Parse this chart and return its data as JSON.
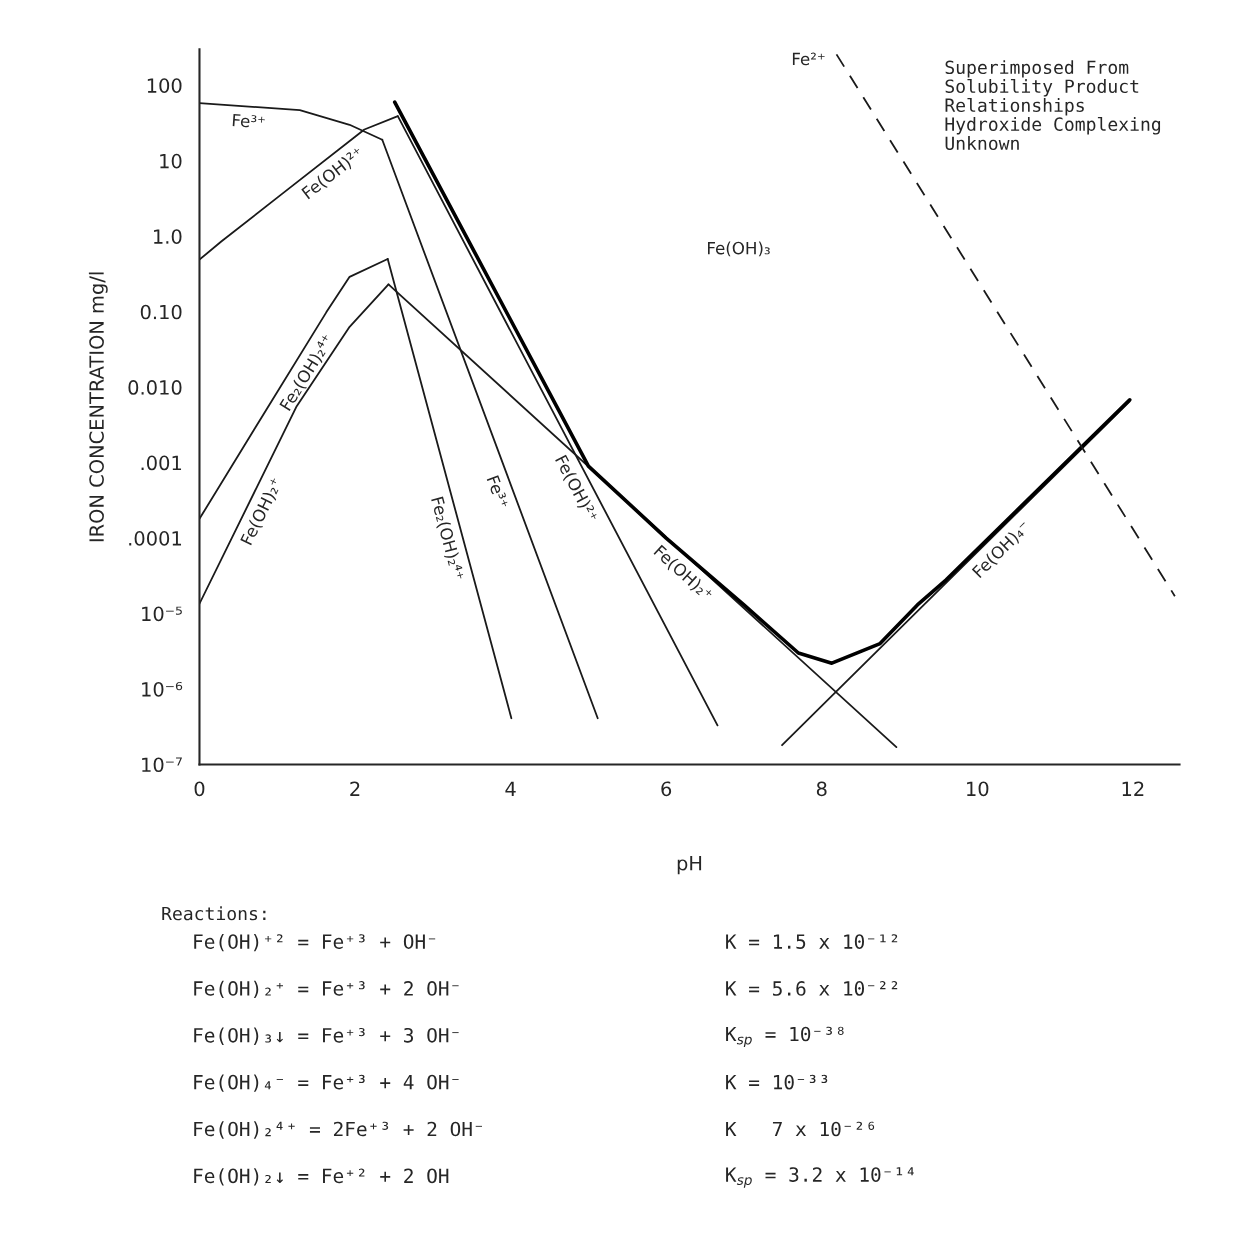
{
  "chart_data": {
    "type": "line",
    "xlabel": "pH",
    "ylabel": "IRON CONCENTRATION mg/l",
    "log": "y",
    "xlim": [
      0,
      12.6
    ],
    "xticks": [
      0,
      2,
      4,
      6,
      8,
      10,
      12
    ],
    "ylim": [
      1e-07,
      300
    ],
    "yticks": [
      {
        "value": 100,
        "label": "100"
      },
      {
        "value": 10,
        "label": "10"
      },
      {
        "value": 1,
        "label": "1.0"
      },
      {
        "value": 0.1,
        "label": "0.10"
      },
      {
        "value": 0.01,
        "label": "0.010"
      },
      {
        "value": 0.001,
        "label": ".001"
      },
      {
        "value": 0.0001,
        "label": ".0001"
      },
      {
        "value": 1e-05,
        "label": "10⁻⁵"
      },
      {
        "value": 1e-06,
        "label": "10⁻⁶"
      },
      {
        "value": 1e-07,
        "label": "10⁻⁷"
      }
    ],
    "grid": false,
    "legend": false,
    "marker": "none",
    "series": [
      {
        "name": "Fe³⁺",
        "color": "#1a1a1a",
        "x": [
          0,
          1.29,
          1.93,
          2.35
        ],
        "values": [
          58,
          47,
          30,
          19
        ]
      },
      {
        "name": "Fe³⁺",
        "color": "#1a1a1a",
        "x": [
          2.35,
          5.12
        ],
        "values": [
          19,
          4.1e-07
        ]
      },
      {
        "name": "Fe(OH)²⁺",
        "color": "#1a1a1a",
        "x": [
          0,
          0.28,
          1.07,
          2.12,
          2.55
        ],
        "values": [
          0.49,
          0.85,
          3.7,
          26,
          39
        ]
      },
      {
        "name": "Fe(OH)²⁺",
        "color": "#1a1a1a",
        "x": [
          2.55,
          6.66
        ],
        "values": [
          39,
          3.3e-07
        ]
      },
      {
        "name": "Fe₂(OH)₂⁴⁺",
        "color": "#1a1a1a",
        "x": [
          0,
          0.8,
          1.63,
          1.93,
          2.42
        ],
        "values": [
          0.00018,
          0.004,
          0.098,
          0.29,
          0.5
        ]
      },
      {
        "name": "Fe₂(OH)₂⁴⁺",
        "color": "#1a1a1a",
        "x": [
          2.42,
          4.01
        ],
        "values": [
          0.5,
          4.1e-07
        ]
      },
      {
        "name": "Fe(OH)₂⁺",
        "color": "#1a1a1a",
        "x": [
          0,
          1.25,
          1.93,
          2.43
        ],
        "values": [
          1.35e-05,
          0.0056,
          0.063,
          0.23
        ]
      },
      {
        "name": "Fe(OH)₂⁺",
        "color": "#1a1a1a",
        "x": [
          2.43,
          8.96
        ],
        "values": [
          0.23,
          1.7e-07
        ]
      },
      {
        "name": "Fe(OH)₄⁻",
        "color": "#1a1a1a",
        "x": [
          7.49,
          11.96
        ],
        "values": [
          1.8e-07,
          0.0065
        ]
      },
      {
        "color": "#000000",
        "x": [
          2.51,
          4.59,
          5.0,
          6.0,
          7.0,
          7.7,
          8.13,
          8.75,
          9.23,
          9.6,
          11.96
        ],
        "values": [
          60,
          0.0056,
          0.0009,
          0.0001,
          1.3e-05,
          3e-06,
          2.2e-06,
          4e-06,
          1.3e-05,
          2.8e-05,
          0.0068
        ]
      },
      {
        "name": "Fe²⁺",
        "color": "#1a1a1a",
        "line_style": "dashed",
        "x": [
          8.19,
          12.54
        ],
        "values": [
          257,
          1.7e-05
        ]
      }
    ],
    "annotations": [
      "Fe(OH)₃",
      "Superimposed From\nSolubility Product\nRelationships\nHydroxide Complexing\nUnknown",
      "Reactions:",
      "Fe(OH)⁺² = Fe⁺³ + OH⁻",
      "Fe(OH)₂⁺ = Fe⁺³ + 2 OH⁻",
      "Fe(OH)₃↓ = Fe⁺³ + 3 OH⁻",
      "Fe(OH)₄⁻ = Fe⁺³ + 4 OH⁻",
      "Fe(OH)₂⁴⁺ = 2Fe⁺³ + 2 OH⁻",
      "Fe(OH)₂↓ = Fe⁺² + 2 OH",
      "K = 1.5 x 10⁻¹²",
      "K = 5.6 x 10⁻²²",
      "K$_{sp}$ = 10⁻³⁸",
      "K = 10⁻³³",
      "K   7 x 10⁻²⁶",
      "K$_{sp}$ = 3.2 x 10⁻¹⁴"
    ]
  }
}
